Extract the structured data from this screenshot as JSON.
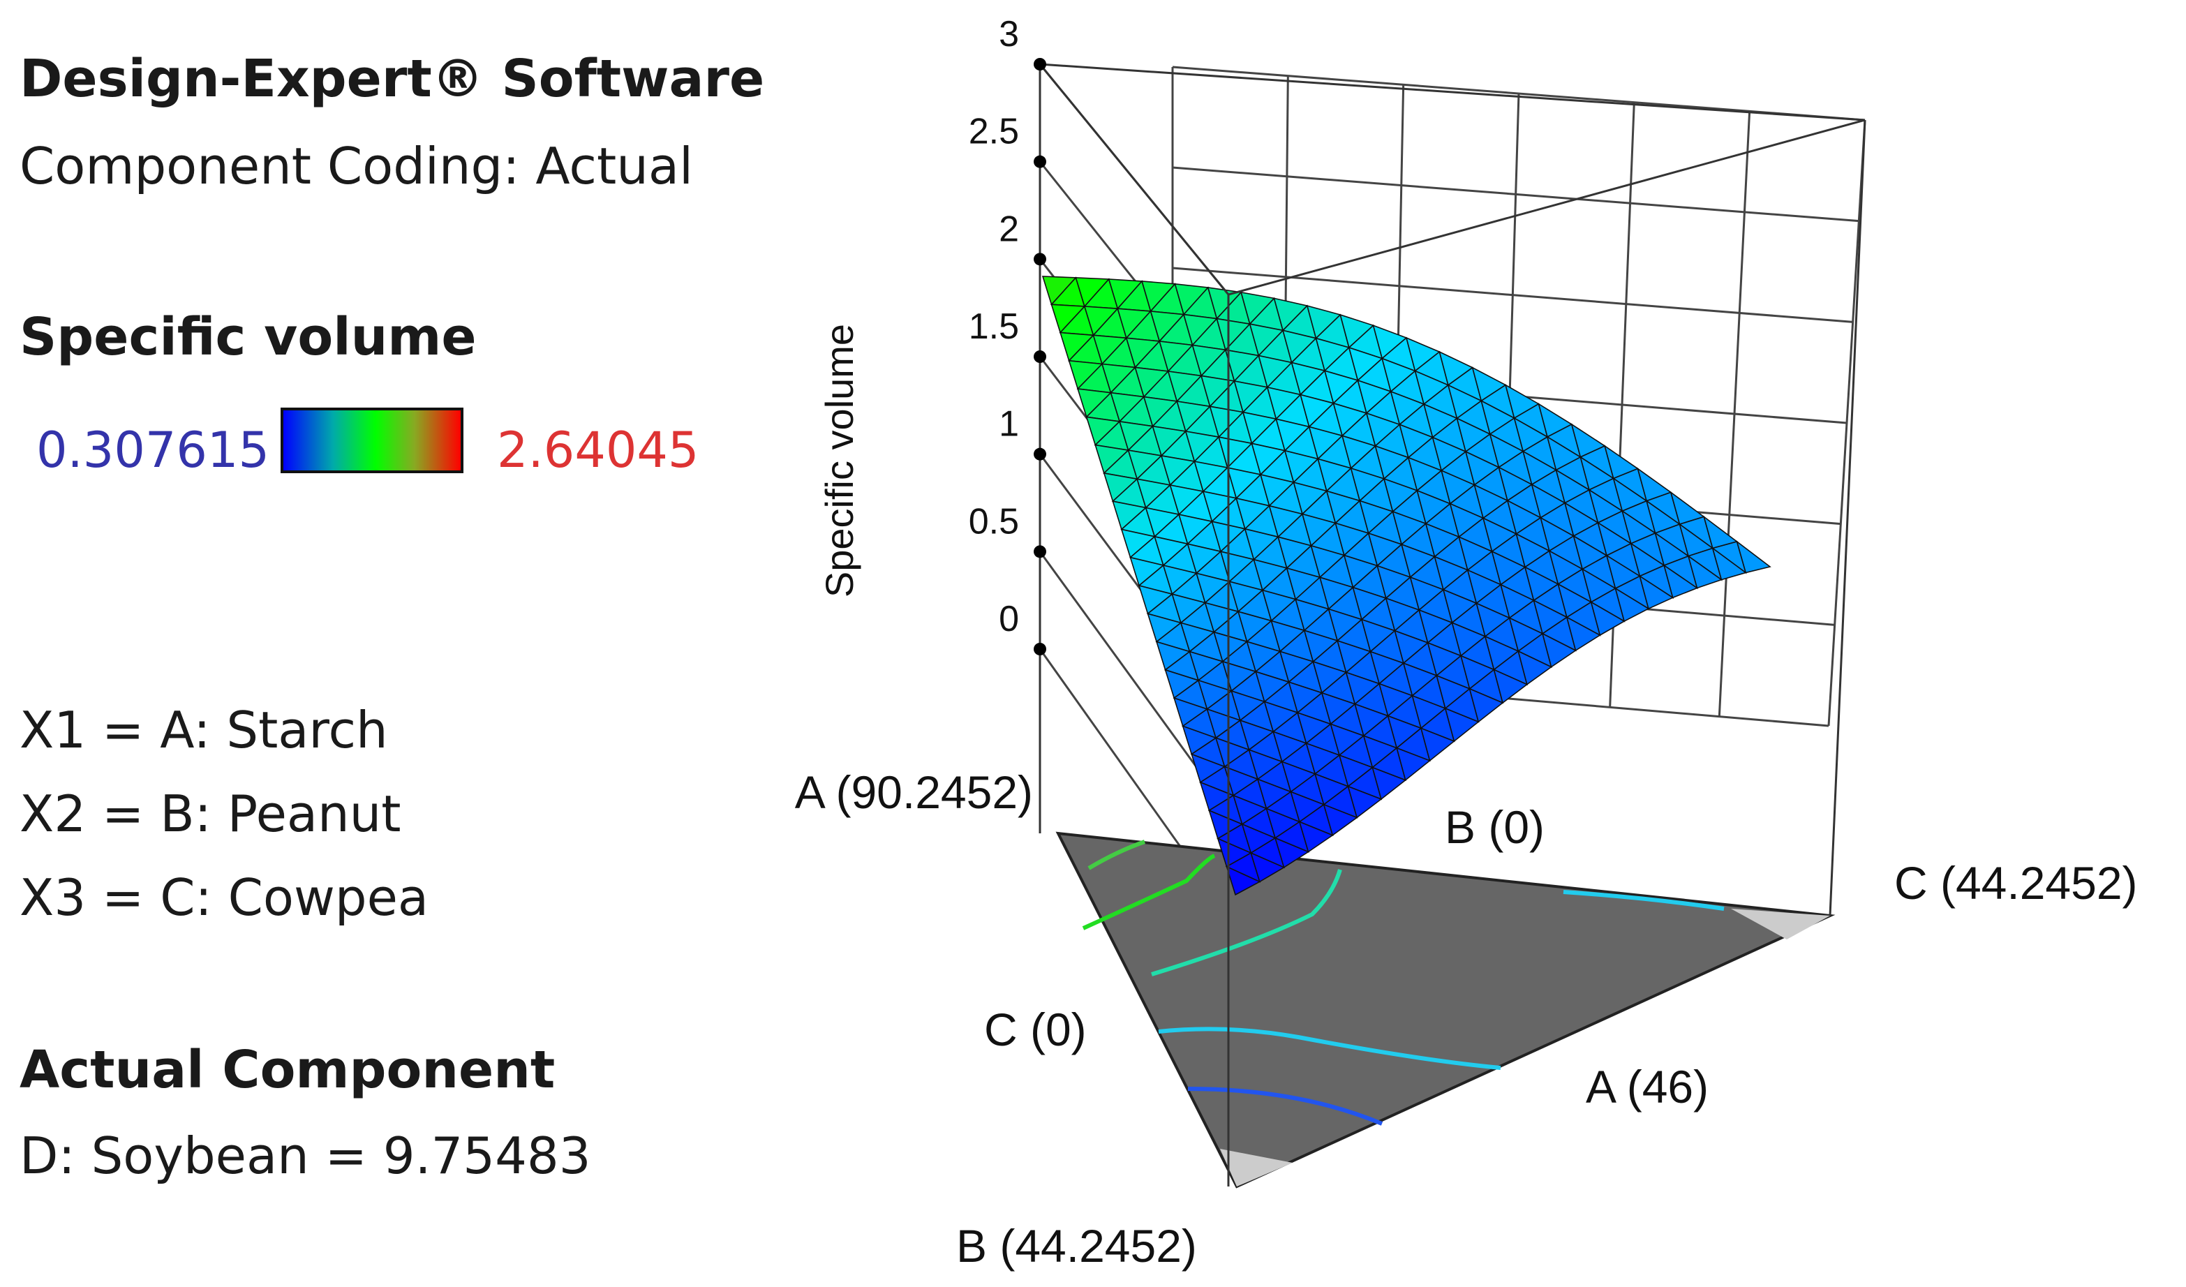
{
  "legend": {
    "software": "Design-Expert® Software",
    "coding": "Component Coding: Actual",
    "response_title": "Specific volume",
    "scale_min": "0.307615",
    "scale_max": "2.64045",
    "scale_min_color": "#3333aa",
    "scale_max_color": "#dd3333",
    "factors": [
      "X1 = A: Starch",
      "X2 = B: Peanut",
      "X3 = C: Cowpea"
    ],
    "actual_title": "Actual Component",
    "actual_value": "D: Soybean = 9.75483"
  },
  "chart_data": {
    "type": "surface",
    "zlabel": "Specific volume",
    "zlim": [
      0,
      3
    ],
    "zticks": [
      "0",
      "0.5",
      "1",
      "1.5",
      "2",
      "2.5",
      "3"
    ],
    "color_range": [
      0.307615,
      2.64045
    ],
    "vertex_labels": {
      "a_max": "A (90.2452)",
      "b_zero": "B (0)",
      "c_max": "C (44.2452)",
      "c_zero": "C (0)",
      "a_mid": "A (46)",
      "b_max": "B (44.2452)"
    },
    "corner_values": {
      "at_A_90_2452": 1.85,
      "at_B_44_2452": 0.3,
      "at_C_44_2452": 0.85
    }
  }
}
